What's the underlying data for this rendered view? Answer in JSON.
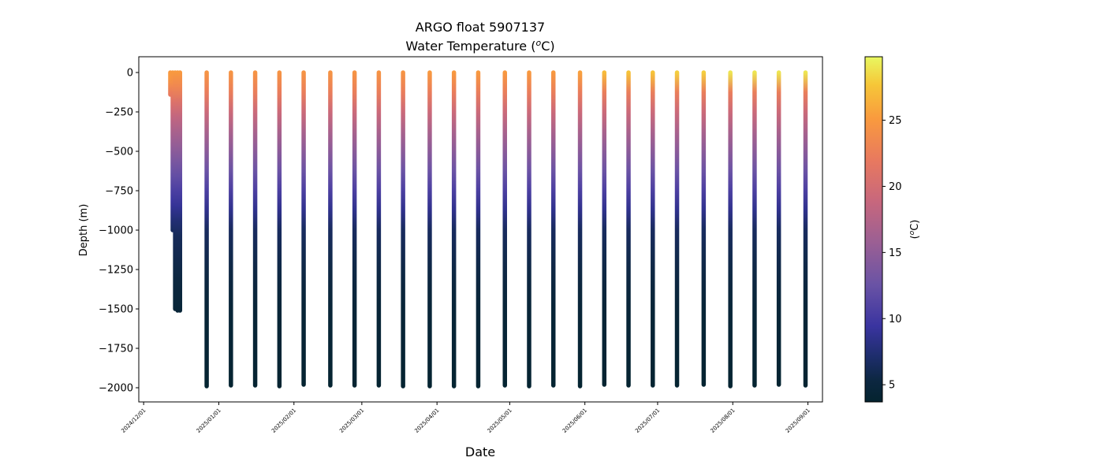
{
  "chart_data": {
    "type": "scatter",
    "title": "ARGO float 5907137",
    "subtitle_prefix": "Water Temperature (",
    "subtitle_unit_sup": "o",
    "subtitle_unit_suffix": "C)",
    "xlabel": "Date",
    "ylabel": "Depth (m)",
    "colorbar_label_prefix": "(",
    "colorbar_label_sup": "o",
    "colorbar_label_suffix": "C)",
    "xlim": [
      "2024-11-29",
      "2025-09-07"
    ],
    "ylim": [
      -2090,
      100
    ],
    "x_ticks": [
      {
        "date": "2024-12-01",
        "label": "2024/12/01"
      },
      {
        "date": "2025-01-01",
        "label": "2025/01/01"
      },
      {
        "date": "2025-02-01",
        "label": "2025/02/01"
      },
      {
        "date": "2025-03-01",
        "label": "2025/03/01"
      },
      {
        "date": "2025-04-01",
        "label": "2025/04/01"
      },
      {
        "date": "2025-05-01",
        "label": "2025/05/01"
      },
      {
        "date": "2025-06-01",
        "label": "2025/06/01"
      },
      {
        "date": "2025-07-01",
        "label": "2025/07/01"
      },
      {
        "date": "2025-08-01",
        "label": "2025/08/01"
      },
      {
        "date": "2025-09-01",
        "label": "2025/09/01"
      }
    ],
    "y_ticks": [
      0,
      -250,
      -500,
      -750,
      -1000,
      -1250,
      -1500,
      -1750,
      -2000
    ],
    "y_tick_labels": [
      "0",
      "−250",
      "−500",
      "−750",
      "−1000",
      "−1250",
      "−1500",
      "−1750",
      "−2000"
    ],
    "colorbar": {
      "colormap": "thermal",
      "vmin": 3.7,
      "vmax": 29.8,
      "ticks": [
        5,
        10,
        15,
        20,
        25
      ],
      "tick_labels": [
        "5",
        "10",
        "15",
        "20",
        "25"
      ]
    },
    "series": [
      {
        "date": "2024-12-12",
        "depth_min": -140,
        "depth_max": 0,
        "surface_temp": 25.0
      },
      {
        "date": "2024-12-13",
        "depth_min": -1000,
        "depth_max": 0,
        "surface_temp": 25.0
      },
      {
        "date": "2024-12-14",
        "depth_min": -1500,
        "depth_max": 0,
        "surface_temp": 25.0
      },
      {
        "date": "2024-12-15",
        "depth_min": -1510,
        "depth_max": 0,
        "surface_temp": 25.0
      },
      {
        "date": "2024-12-16",
        "depth_min": -1510,
        "depth_max": 0,
        "surface_temp": 25.0
      },
      {
        "date": "2024-12-27",
        "depth_min": -1990,
        "depth_max": 0,
        "surface_temp": 24.5
      },
      {
        "date": "2025-01-06",
        "depth_min": -1985,
        "depth_max": 0,
        "surface_temp": 24.5
      },
      {
        "date": "2025-01-16",
        "depth_min": -1985,
        "depth_max": 0,
        "surface_temp": 24.5
      },
      {
        "date": "2025-01-26",
        "depth_min": -1990,
        "depth_max": 0,
        "surface_temp": 24.5
      },
      {
        "date": "2025-02-05",
        "depth_min": -1980,
        "depth_max": 0,
        "surface_temp": 24.5
      },
      {
        "date": "2025-02-16",
        "depth_min": -1985,
        "depth_max": 0,
        "surface_temp": 24.5
      },
      {
        "date": "2025-02-26",
        "depth_min": -1985,
        "depth_max": 0,
        "surface_temp": 24.5
      },
      {
        "date": "2025-03-08",
        "depth_min": -1985,
        "depth_max": 0,
        "surface_temp": 24.5
      },
      {
        "date": "2025-03-18",
        "depth_min": -1990,
        "depth_max": 0,
        "surface_temp": 24.5
      },
      {
        "date": "2025-03-29",
        "depth_min": -1990,
        "depth_max": 0,
        "surface_temp": 25.0
      },
      {
        "date": "2025-04-08",
        "depth_min": -1990,
        "depth_max": 0,
        "surface_temp": 25.0
      },
      {
        "date": "2025-04-18",
        "depth_min": -1990,
        "depth_max": 0,
        "surface_temp": 25.0
      },
      {
        "date": "2025-04-29",
        "depth_min": -1985,
        "depth_max": 0,
        "surface_temp": 25.0
      },
      {
        "date": "2025-05-09",
        "depth_min": -1990,
        "depth_max": 0,
        "surface_temp": 25.0
      },
      {
        "date": "2025-05-19",
        "depth_min": -1985,
        "depth_max": 0,
        "surface_temp": 25.0
      },
      {
        "date": "2025-05-30",
        "depth_min": -1990,
        "depth_max": 0,
        "surface_temp": 25.5
      },
      {
        "date": "2025-06-09",
        "depth_min": -1980,
        "depth_max": 0,
        "surface_temp": 27.0
      },
      {
        "date": "2025-06-19",
        "depth_min": -1985,
        "depth_max": 0,
        "surface_temp": 27.5
      },
      {
        "date": "2025-06-29",
        "depth_min": -1985,
        "depth_max": 0,
        "surface_temp": 27.5
      },
      {
        "date": "2025-07-09",
        "depth_min": -1985,
        "depth_max": 0,
        "surface_temp": 28.0
      },
      {
        "date": "2025-07-20",
        "depth_min": -1980,
        "depth_max": 0,
        "surface_temp": 28.0
      },
      {
        "date": "2025-07-31",
        "depth_min": -1990,
        "depth_max": 0,
        "surface_temp": 29.0
      },
      {
        "date": "2025-08-10",
        "depth_min": -1985,
        "depth_max": 0,
        "surface_temp": 29.0
      },
      {
        "date": "2025-08-20",
        "depth_min": -1980,
        "depth_max": 0,
        "surface_temp": 29.0
      },
      {
        "date": "2025-08-31",
        "depth_min": -1985,
        "depth_max": 0,
        "surface_temp": 29.0
      }
    ]
  }
}
